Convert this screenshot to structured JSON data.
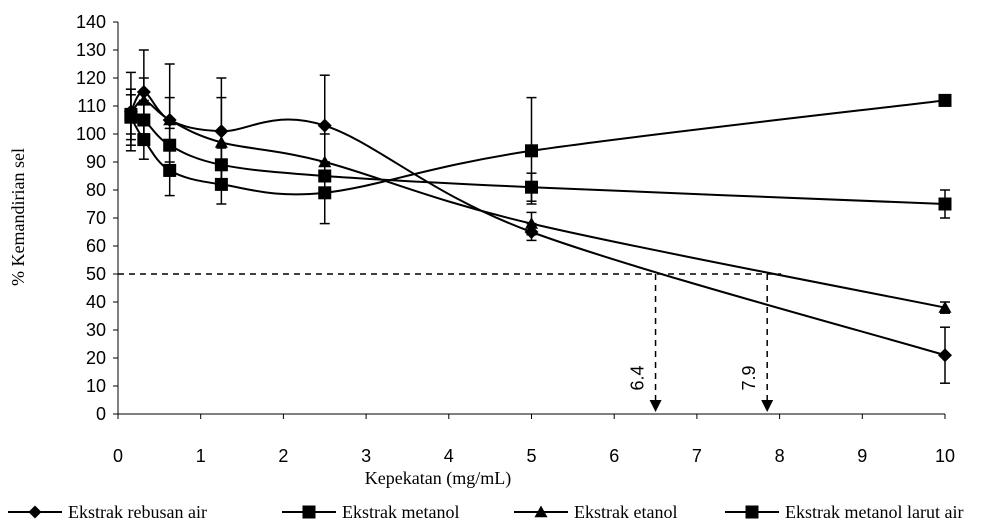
{
  "chart_data": {
    "type": "line",
    "xlabel": "Kepekatan (mg/mL)",
    "ylabel": "% Kemandirian sel",
    "xlim": [
      0,
      10
    ],
    "ylim": [
      0,
      140
    ],
    "xticks": [
      "0",
      "1",
      "2",
      "3",
      "4",
      "5",
      "6",
      "7",
      "8",
      "9",
      "10"
    ],
    "yticks": [
      "0",
      "10",
      "20",
      "30",
      "40",
      "50",
      "60",
      "70",
      "80",
      "90",
      "100",
      "110",
      "120",
      "130",
      "140"
    ],
    "grid": false,
    "legend_position": "bottom",
    "series": [
      {
        "name": "Ekstrak rebusan air",
        "marker": "diamond",
        "x": [
          0.156,
          0.3125,
          0.625,
          1.25,
          2.5,
          5,
          10
        ],
        "y": [
          108,
          115,
          105,
          101,
          103,
          65,
          21
        ],
        "err": [
          14,
          15,
          20,
          19,
          18,
          3,
          10
        ]
      },
      {
        "name": "Ekstrak metanol",
        "marker": "square",
        "x": [
          0.156,
          0.3125,
          0.625,
          1.25,
          2.5,
          5,
          10
        ],
        "y": [
          107,
          105,
          96,
          89,
          85,
          81,
          75
        ],
        "err": [
          9,
          7,
          6,
          6,
          5,
          5,
          5
        ]
      },
      {
        "name": "Ekstrak etanol",
        "marker": "triangle",
        "x": [
          0.156,
          0.3125,
          0.625,
          1.25,
          2.5,
          5,
          10
        ],
        "y": [
          107,
          112,
          105,
          97,
          90,
          68,
          38
        ],
        "err": [
          7,
          8,
          8,
          16,
          10,
          4,
          2
        ]
      },
      {
        "name": "Ekstrak metanol larut air",
        "marker": "square",
        "x": [
          0.156,
          0.3125,
          0.625,
          1.25,
          2.5,
          5,
          10
        ],
        "y": [
          106,
          98,
          87,
          82,
          79,
          94,
          112
        ],
        "err": [
          10,
          7,
          9,
          7,
          11,
          19,
          2
        ]
      }
    ],
    "annotations": [
      {
        "label": "6.4",
        "x": 6.5,
        "y": 50
      },
      {
        "label": "7.9",
        "x": 7.85,
        "y": 50
      }
    ],
    "reference_line_y": 50
  }
}
